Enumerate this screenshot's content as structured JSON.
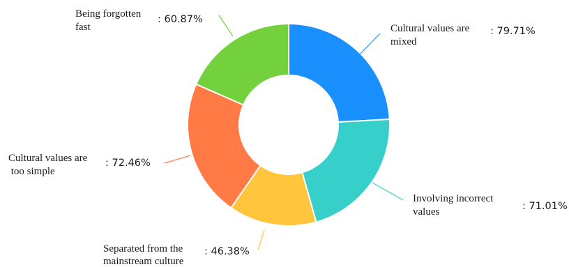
{
  "chart_data": {
    "type": "pie",
    "style": "donut",
    "categories": [
      "Cultural values are mixed",
      "Involving incorrect values",
      "Separated from the mainstream culture",
      "Cultural values are too simple",
      "Being forgotten fast"
    ],
    "values": [
      79.71,
      71.01,
      46.38,
      72.46,
      60.87
    ],
    "value_labels": [
      ": 79.71%",
      ": 71.01%",
      ": 46.38%",
      ": 72.46%",
      ": 60.87%"
    ],
    "label_lines": [
      [
        "Cultural values are",
        "mixed"
      ],
      [
        "Involving incorrect",
        "values"
      ],
      [
        "Separated from the",
        "mainstream culture"
      ],
      [
        "Cultural values are",
        " too simple"
      ],
      [
        "Being forgotten",
        "fast"
      ]
    ],
    "colors": [
      "#1A90FF",
      "#36CFC9",
      "#FFC53D",
      "#FF7A45",
      "#73D13D"
    ],
    "start_angle": "12 o'clock",
    "direction": "clockwise",
    "legend": "none"
  }
}
